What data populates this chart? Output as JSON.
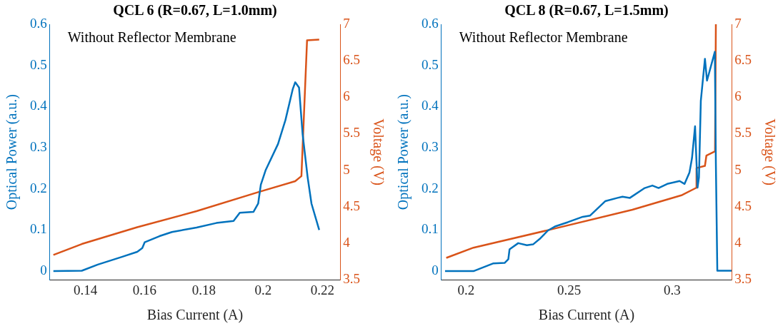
{
  "chart_data": [
    {
      "type": "line",
      "title": "QCL 6 (R=0.67, L=1.0mm)",
      "xlabel": "Bias Current (A)",
      "ylabel": "Optical Power (a.u.)",
      "y2label": "Voltage (V)",
      "annotations": [
        "Without Reflector Membrane"
      ],
      "marker": "none",
      "grid": false,
      "legend": false,
      "xlim": [
        0.128,
        0.226
      ],
      "xticks": [
        0.14,
        0.16,
        0.18,
        0.2,
        0.22
      ],
      "ylim": [
        -0.021,
        0.6
      ],
      "yticks": [
        0,
        0.1,
        0.2,
        0.3,
        0.4,
        0.5,
        0.6
      ],
      "y2lim": [
        3.5,
        7
      ],
      "y2ticks": [
        3.5,
        4,
        4.5,
        5,
        5.5,
        6,
        6.5,
        7
      ],
      "series": [
        {
          "color": "#0072bd",
          "x": [
            0.1292,
            0.1388,
            0.1442,
            0.1525,
            0.1575,
            0.1592,
            0.16,
            0.165,
            0.1692,
            0.1775,
            0.1842,
            0.19,
            0.1921,
            0.1967,
            0.1983,
            0.1992,
            0.2008,
            0.205,
            0.2075,
            0.21,
            0.2108,
            0.2121,
            0.2133,
            0.215,
            0.2163,
            0.2189
          ],
          "values": [
            0,
            0.001,
            0.016,
            0.035,
            0.047,
            0.056,
            0.07,
            0.085,
            0.095,
            0.106,
            0.117,
            0.122,
            0.142,
            0.144,
            0.164,
            0.21,
            0.245,
            0.309,
            0.367,
            0.443,
            0.459,
            0.446,
            0.333,
            0.228,
            0.164,
            0.1
          ]
        },
        {
          "color": "#d95319",
          "axis": "y2",
          "x": [
            0.1292,
            0.1388,
            0.1575,
            0.1775,
            0.1983,
            0.2108,
            0.2129,
            0.2148,
            0.2189
          ],
          "values": [
            3.84,
            3.99,
            4.22,
            4.44,
            4.7,
            4.85,
            4.92,
            6.78,
            6.79
          ]
        }
      ]
    },
    {
      "type": "line",
      "title": "QCL 8 (R=0.67, L=1.5mm)",
      "xlabel": "Bias Current (A)",
      "ylabel": "Optical Power (a.u.)",
      "y2label": "Voltage (V)",
      "annotations": [
        "Without Reflector Membrane"
      ],
      "marker": "none",
      "grid": false,
      "legend": false,
      "xlim": [
        0.188,
        0.3289
      ],
      "xticks": [
        0.2,
        0.25,
        0.3
      ],
      "ylim": [
        -0.021,
        0.6
      ],
      "yticks": [
        0,
        0.1,
        0.2,
        0.3,
        0.4,
        0.5,
        0.6
      ],
      "y2lim": [
        3.5,
        7
      ],
      "y2ticks": [
        3.5,
        4,
        4.5,
        5,
        5.5,
        6,
        6.5,
        7
      ],
      "series": [
        {
          "color": "#0072bd",
          "x": [
            0.1898,
            0.2036,
            0.2133,
            0.2187,
            0.2205,
            0.2211,
            0.2253,
            0.2295,
            0.2325,
            0.2361,
            0.2398,
            0.2434,
            0.2494,
            0.2566,
            0.2602,
            0.2675,
            0.2735,
            0.2759,
            0.2795,
            0.2867,
            0.2904,
            0.2934,
            0.2976,
            0.3036,
            0.306,
            0.3084,
            0.3096,
            0.3111,
            0.3123,
            0.313,
            0.3139,
            0.3159,
            0.3169,
            0.3207,
            0.3212,
            0.3219,
            0.3289
          ],
          "values": [
            0,
            0,
            0.019,
            0.02,
            0.029,
            0.053,
            0.068,
            0.063,
            0.065,
            0.08,
            0.099,
            0.109,
            0.119,
            0.132,
            0.135,
            0.17,
            0.178,
            0.181,
            0.178,
            0.202,
            0.208,
            0.202,
            0.212,
            0.219,
            0.212,
            0.24,
            0.274,
            0.352,
            0.203,
            0.228,
            0.414,
            0.516,
            0.463,
            0.533,
            0.262,
            0.001,
            0.001
          ]
        },
        {
          "color": "#d95319",
          "axis": "y2",
          "x": [
            0.1904,
            0.2036,
            0.2398,
            0.2807,
            0.3048,
            0.3117,
            0.3118,
            0.3159,
            0.3166,
            0.3208,
            0.3212
          ],
          "values": [
            3.8,
            3.94,
            4.18,
            4.46,
            4.66,
            4.76,
            5.03,
            5.06,
            5.2,
            5.26,
            7.0
          ]
        }
      ]
    }
  ]
}
